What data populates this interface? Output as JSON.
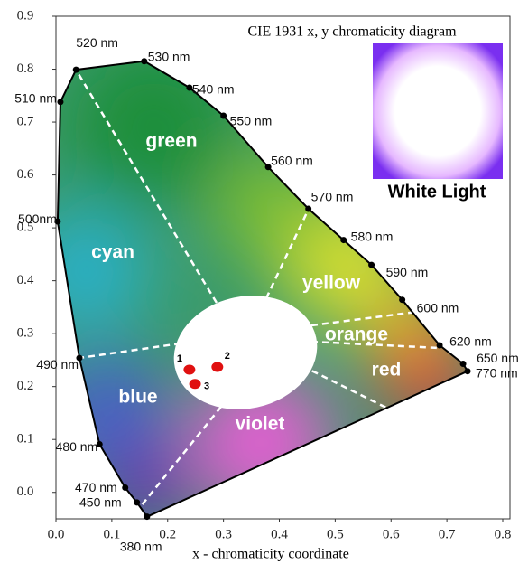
{
  "chart_data": {
    "type": "scatter",
    "title": "CIE 1931 x, y chromaticity diagram",
    "x_label": "x - chromaticity coordinate",
    "xlim": [
      0,
      0.8
    ],
    "ylim": [
      -0.05,
      0.9
    ],
    "xticks": [
      {
        "value": 0,
        "label": "0.0"
      },
      0.1,
      0.2,
      0.3,
      0.4,
      0.5,
      0.6,
      0.7,
      0.8
    ],
    "yticks": [
      {
        "value": 0,
        "label": "0.0"
      },
      0.1,
      0.2,
      0.3,
      0.4,
      0.5,
      0.6,
      0.7,
      0.8,
      0.9
    ],
    "locus": {
      "labels": [
        "380 nm",
        "450 nm",
        "470 nm",
        "480 nm",
        "490 nm",
        "500nm",
        "510 nm",
        "520 nm",
        "530 nm",
        "540 nm",
        "550 nm",
        "560 nm",
        "570 nm",
        "580 nm",
        "590 nm",
        "600 nm",
        "620 nm",
        "650 nm",
        "770 nm"
      ],
      "x": [
        0.163,
        0.145,
        0.124,
        0.078,
        0.042,
        0.003,
        0.008,
        0.036,
        0.158,
        0.239,
        0.3,
        0.38,
        0.452,
        0.515,
        0.565,
        0.62,
        0.687,
        0.729,
        0.737
      ],
      "y": [
        -0.046,
        -0.019,
        0.009,
        0.091,
        0.254,
        0.512,
        0.738,
        0.799,
        0.815,
        0.765,
        0.712,
        0.615,
        0.536,
        0.477,
        0.43,
        0.364,
        0.278,
        0.243,
        0.229
      ],
      "color": "#000000"
    },
    "points": {
      "labels": [
        "1",
        "2",
        "3"
      ],
      "x": [
        0.239,
        0.289,
        0.249
      ],
      "y": [
        0.232,
        0.237,
        0.205
      ],
      "color": "#e01010"
    },
    "regions": [
      "green",
      "cyan",
      "yellow",
      "orange",
      "red",
      "blue",
      "violet"
    ],
    "inset_label": "White Light"
  }
}
